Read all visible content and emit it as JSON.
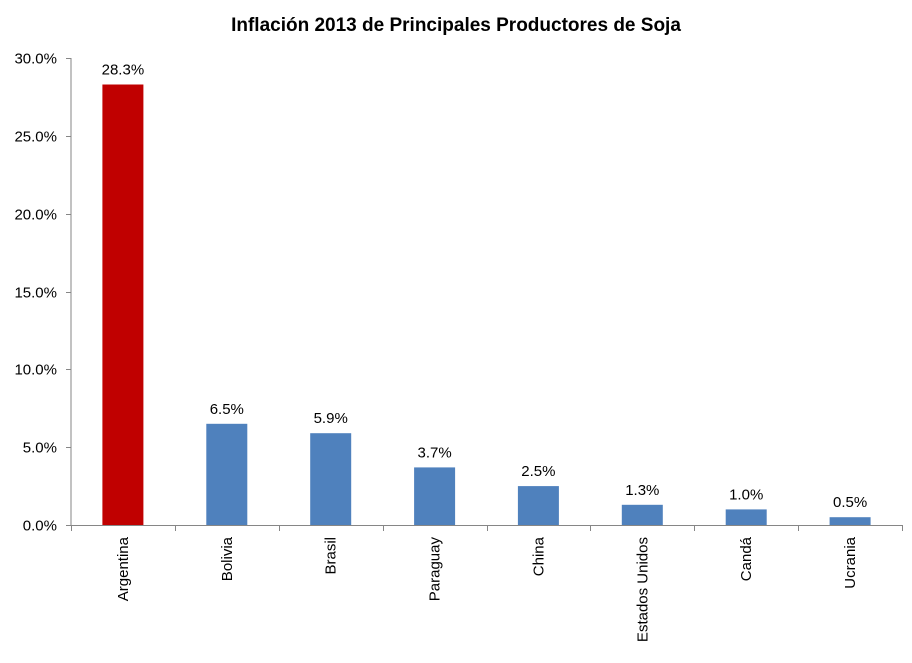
{
  "chart_data": {
    "type": "bar",
    "title": "Inflación 2013 de Principales Productores de Soja",
    "xlabel": "",
    "ylabel": "",
    "categories": [
      "Argentina",
      "Bolivia",
      "Brasil",
      "Paraguay",
      "China",
      "Estados Unidos",
      "Candá",
      "Ucrania"
    ],
    "values": [
      28.3,
      6.5,
      5.9,
      3.7,
      2.5,
      1.3,
      1.0,
      0.5
    ],
    "data_labels": [
      "28.3%",
      "6.5%",
      "5.9%",
      "3.7%",
      "2.5%",
      "1.3%",
      "1.0%",
      "0.5%"
    ],
    "ylim": [
      0,
      30
    ],
    "y_ticks": [
      0,
      5,
      10,
      15,
      20,
      25,
      30
    ],
    "y_tick_labels": [
      "0.0%",
      "5.0%",
      "10.0%",
      "15.0%",
      "20.0%",
      "25.0%",
      "30.0%"
    ],
    "grid": false,
    "legend": "none",
    "colors": {
      "highlight": "#C00000",
      "default": "#4F81BD"
    },
    "highlight_index": 0
  }
}
